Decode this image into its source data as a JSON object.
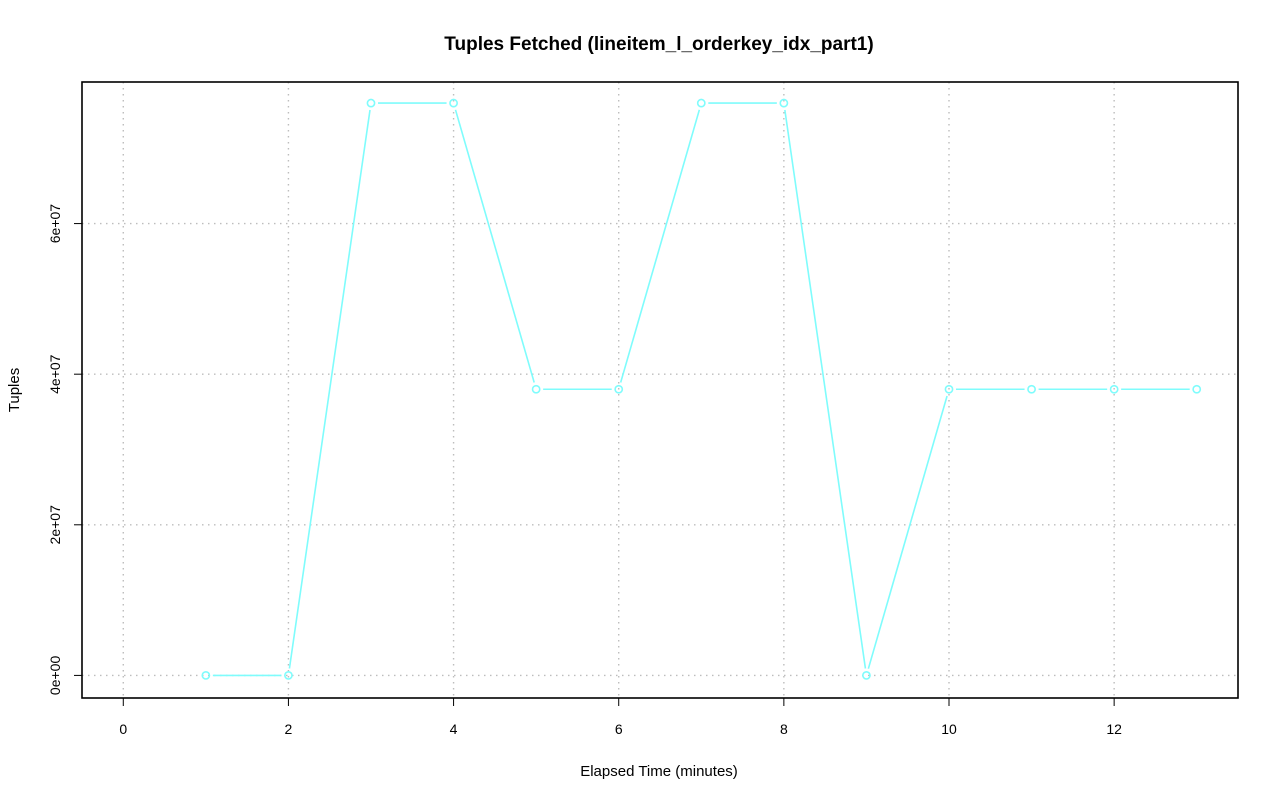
{
  "chart_data": {
    "type": "line",
    "title": "Tuples Fetched (lineitem_l_orderkey_idx_part1)",
    "xlabel": "Elapsed Time (minutes)",
    "ylabel": "Tuples",
    "xlim": [
      -0.5,
      13.5
    ],
    "ylim": [
      -3000000,
      78800000
    ],
    "x_ticks": [
      0,
      2,
      4,
      6,
      8,
      10,
      12
    ],
    "x_tick_labels": [
      "0",
      "2",
      "4",
      "6",
      "8",
      "10",
      "12"
    ],
    "y_ticks": [
      0,
      20000000,
      40000000,
      60000000
    ],
    "y_tick_labels": [
      "0e+00",
      "2e+07",
      "4e+07",
      "6e+07"
    ],
    "grid": true,
    "series": [
      {
        "color": "#7ffcfc",
        "marker": "circle",
        "x": [
          1,
          2,
          3,
          4,
          5,
          6,
          7,
          8,
          9,
          10,
          11,
          12,
          13
        ],
        "y": [
          0,
          0,
          76000000,
          76000000,
          38000000,
          38000000,
          76000000,
          76000000,
          0,
          38000000,
          38000000,
          38000000,
          38000000
        ]
      }
    ]
  }
}
